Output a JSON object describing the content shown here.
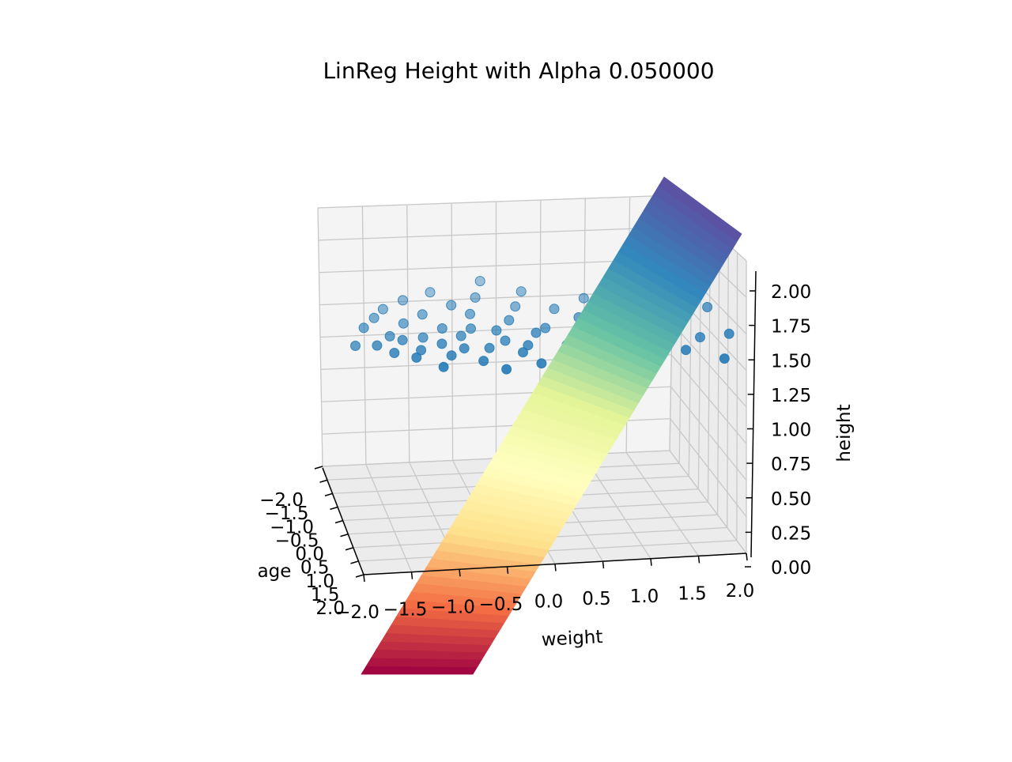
{
  "chart_data": {
    "type": "scatter-3d-surface",
    "title": "LinReg Height with Alpha 0.050000",
    "axes": {
      "x": {
        "label": "weight",
        "lim": [
          -2.0,
          2.0
        ],
        "ticks": [
          "−2.0",
          "−1.5",
          "−1.0",
          "−0.5",
          "0.0",
          "0.5",
          "1.0",
          "1.5",
          "2.0"
        ]
      },
      "y": {
        "label": "age",
        "lim": [
          -2.0,
          2.0
        ],
        "ticks": [
          "−2.0",
          "−1.5",
          "−1.0",
          "−0.5",
          "0.0",
          "0.5",
          "1.0",
          "1.5",
          "2.0"
        ]
      },
      "z": {
        "label": "height",
        "lim": [
          0.0,
          2.0
        ],
        "ticks": [
          "0.00",
          "0.25",
          "0.50",
          "0.75",
          "1.00",
          "1.25",
          "1.50",
          "1.75",
          "2.00"
        ]
      }
    },
    "grid": true,
    "surface": {
      "colormap": "Spectral",
      "colors": [
        "#9e0142",
        "#f46d43",
        "#fee08b",
        "#ffffbf",
        "#e6f598",
        "#66c2a5",
        "#3288bd",
        "#5e4fa2"
      ]
    },
    "scatter": {
      "color": "#1f77b4",
      "points": [
        [
          -1.9,
          0.3,
          1.44
        ],
        [
          -1.75,
          -0.2,
          1.47
        ],
        [
          -1.7,
          0.6,
          1.5
        ],
        [
          -1.6,
          -0.5,
          1.48
        ],
        [
          -1.55,
          0.9,
          1.5
        ],
        [
          -1.5,
          0.1,
          1.46
        ],
        [
          -1.45,
          -0.9,
          1.46
        ],
        [
          -1.4,
          0.4,
          1.49
        ],
        [
          -1.35,
          1.2,
          1.52
        ],
        [
          -1.3,
          -0.3,
          1.47
        ],
        [
          -1.25,
          0.8,
          1.49
        ],
        [
          -1.2,
          -1.1,
          1.48
        ],
        [
          -1.15,
          0.2,
          1.46
        ],
        [
          -1.1,
          1.5,
          1.5
        ],
        [
          -1.05,
          -0.6,
          1.47
        ],
        [
          -1.0,
          0.6,
          1.49
        ],
        [
          -0.95,
          1.0,
          1.48
        ],
        [
          -0.9,
          -0.1,
          1.46
        ],
        [
          -0.85,
          -1.4,
          1.47
        ],
        [
          -0.8,
          0.9,
          1.51
        ],
        [
          -0.75,
          0.3,
          1.48
        ],
        [
          -0.7,
          -0.8,
          1.49
        ],
        [
          -0.65,
          1.3,
          1.49
        ],
        [
          -0.6,
          0.0,
          1.47
        ],
        [
          -0.55,
          -0.4,
          1.5
        ],
        [
          -0.5,
          0.7,
          1.46
        ],
        [
          -0.45,
          1.6,
          1.48
        ],
        [
          -0.4,
          -1.0,
          1.5
        ],
        [
          -0.35,
          0.2,
          1.49
        ],
        [
          -0.3,
          0.5,
          1.47
        ],
        [
          -0.25,
          -1.6,
          1.5
        ],
        [
          -0.2,
          1.1,
          1.5
        ],
        [
          -0.15,
          -0.2,
          1.48
        ],
        [
          -0.1,
          0.8,
          1.49
        ],
        [
          -0.05,
          1.4,
          1.47
        ],
        [
          0.0,
          -0.7,
          1.48
        ],
        [
          0.05,
          0.4,
          1.5
        ],
        [
          0.1,
          1.7,
          1.48
        ],
        [
          0.15,
          -1.2,
          1.49
        ],
        [
          0.2,
          0.1,
          1.47
        ],
        [
          0.3,
          0.9,
          1.5
        ],
        [
          0.4,
          -0.5,
          1.49
        ],
        [
          0.5,
          1.2,
          1.48
        ],
        [
          0.6,
          -0.1,
          1.5
        ],
        [
          0.7,
          0.6,
          1.49
        ],
        [
          0.8,
          -0.9,
          1.48
        ],
        [
          0.9,
          1.5,
          1.5
        ],
        [
          1.0,
          0.3,
          1.47
        ],
        [
          1.1,
          -0.4,
          1.49
        ],
        [
          1.2,
          1.0,
          1.5
        ],
        [
          1.3,
          -1.0,
          1.48
        ],
        [
          1.4,
          0.5,
          1.54
        ],
        [
          1.5,
          1.3,
          1.5
        ],
        [
          1.6,
          -0.2,
          1.49
        ],
        [
          1.75,
          0.8,
          1.49
        ],
        [
          1.85,
          1.6,
          1.48
        ],
        [
          1.95,
          0.2,
          1.6
        ],
        [
          2.0,
          1.1,
          1.57
        ]
      ]
    }
  }
}
